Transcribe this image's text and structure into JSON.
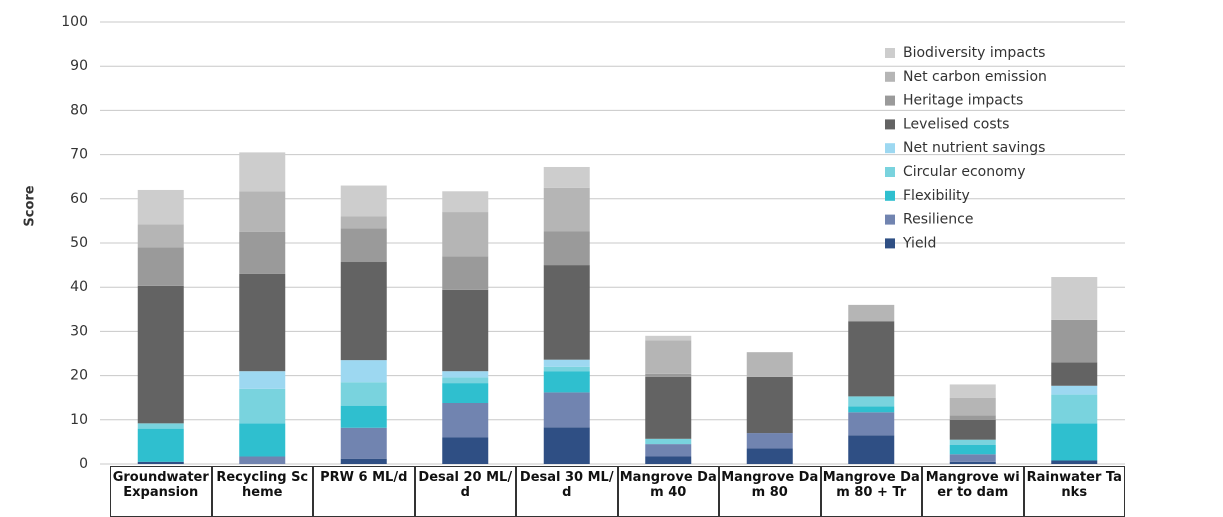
{
  "chart_data": {
    "type": "stacked-bar",
    "y_label": "Score",
    "categories": [
      "Groundwater Expansion",
      "Recycling Scheme",
      "PRW 6 ML/d",
      "Desal 20 ML/d",
      "Desal 30 ML/d",
      "Mangrove Dam 40",
      "Mangrove Dam 80",
      "Mangrove Dam 80 + Tr",
      "Mangrove wier to dam",
      "Rainwater Tanks"
    ],
    "series": [
      {
        "name": "Yield",
        "color": "#2f4f84",
        "values": [
          0.5,
          0,
          1.2,
          6,
          8.3,
          1.7,
          3.5,
          6.5,
          0.5,
          0.8
        ]
      },
      {
        "name": "Resilience",
        "color": "#7184b0",
        "values": [
          0,
          1.7,
          7,
          7.8,
          7.9,
          2.8,
          3.5,
          5.2,
          1.7,
          0
        ]
      },
      {
        "name": "Flexibility",
        "color": "#2fbfcf",
        "values": [
          7.5,
          7.5,
          5,
          4.5,
          4.8,
          0,
          0,
          1.3,
          2.1,
          8.4
        ]
      },
      {
        "name": "Circular economy",
        "color": "#79d3de",
        "values": [
          1.2,
          7.8,
          5.3,
          1.3,
          1,
          1.2,
          0,
          2.3,
          1.2,
          6.5
        ]
      },
      {
        "name": "Net nutrient savings",
        "color": "#9dd8f1",
        "values": [
          0,
          4,
          5,
          1.4,
          1.6,
          0,
          0,
          0,
          0,
          2
        ]
      },
      {
        "name": "Levelised costs",
        "color": "#636363",
        "values": [
          31.1,
          22,
          22.2,
          18.4,
          21.4,
          14,
          12.7,
          17,
          4.5,
          5.3
        ]
      },
      {
        "name": "Heritage impacts",
        "color": "#9a9a9a",
        "values": [
          8.7,
          9.5,
          7.6,
          7.6,
          7.6,
          0.7,
          0,
          0,
          1,
          9.6
        ]
      },
      {
        "name": "Net carbon emission",
        "color": "#b5b5b5",
        "values": [
          5.2,
          9.2,
          2.7,
          10,
          9.9,
          7.6,
          5.6,
          3.7,
          4,
          0
        ]
      },
      {
        "name": "Biodiversity impacts",
        "color": "#cdcdcd",
        "values": [
          7.8,
          8.8,
          7,
          4.7,
          4.7,
          1,
          0,
          0,
          3,
          9.7
        ]
      }
    ],
    "ylim": [
      0,
      100
    ],
    "yticks": [
      0,
      10,
      20,
      30,
      40,
      50,
      60,
      70,
      80,
      90,
      100
    ],
    "grid": true,
    "legend": "top-right"
  }
}
